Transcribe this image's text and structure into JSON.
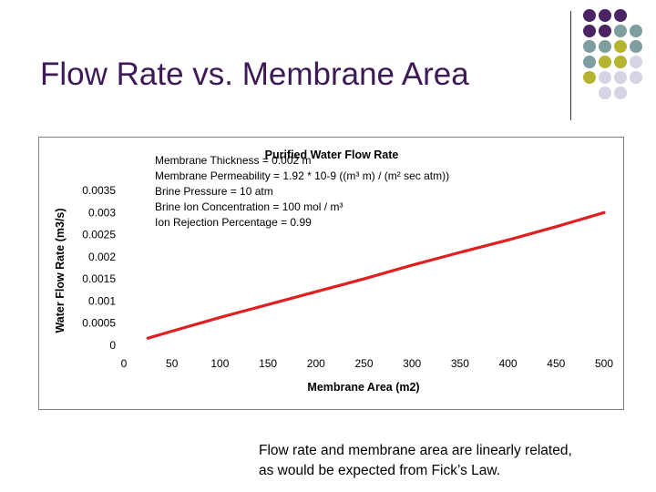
{
  "slide": {
    "title": "Flow Rate vs. Membrane Area",
    "caption_lines": [
      "Flow rate and membrane area are linearly related,",
      "as would be expected from Fick’s Law."
    ]
  },
  "decoration": {
    "dot_colors": {
      "purple": "#4b2464",
      "teal": "#7f9ea0",
      "olive": "#b5b531",
      "lavender": "#d4d4e4"
    },
    "dot_rows": [
      [
        "purple",
        "purple",
        "purple",
        null
      ],
      [
        "purple",
        "purple",
        "teal",
        "teal"
      ],
      [
        "teal",
        "teal",
        "olive",
        "teal"
      ],
      [
        "teal",
        "olive",
        "olive",
        "lavender"
      ],
      [
        "olive",
        "lavender",
        "lavender",
        "lavender"
      ],
      [
        null,
        "lavender",
        "lavender",
        null
      ]
    ]
  },
  "chart_data": {
    "type": "line",
    "title": "Purified Water Flow Rate",
    "xlabel": "Membrane Area (m2)",
    "ylabel": "Water Flow Rate (m3/s)",
    "xlim": [
      0,
      500
    ],
    "ylim": [
      0,
      0.0035
    ],
    "x_ticks": [
      "0",
      "50",
      "100",
      "150",
      "200",
      "250",
      "300",
      "350",
      "400",
      "450",
      "500"
    ],
    "y_ticks": [
      "0",
      "0.0005",
      "0.001",
      "0.0015",
      "0.002",
      "0.0025",
      "0.003",
      "0.0035"
    ],
    "grid": false,
    "line_color": "#e02020",
    "series": [
      {
        "x": [
          25,
          50,
          100,
          150,
          200,
          250,
          300,
          350,
          400,
          450,
          500
        ],
        "y": [
          0.00016,
          0.00032,
          0.00063,
          0.00092,
          0.00121,
          0.0015,
          0.00181,
          0.0021,
          0.00238,
          0.00268,
          0.003
        ]
      }
    ],
    "annotations": [
      "Membrane Thickness = 0.002 m",
      "Membrane Permeability = 1.92 * 10-9 ((m³ m) / (m² sec atm))",
      "Brine Pressure = 10 atm",
      "Brine Ion Concentration = 100 mol / m³",
      "Ion Rejection Percentage = 0.99"
    ]
  }
}
